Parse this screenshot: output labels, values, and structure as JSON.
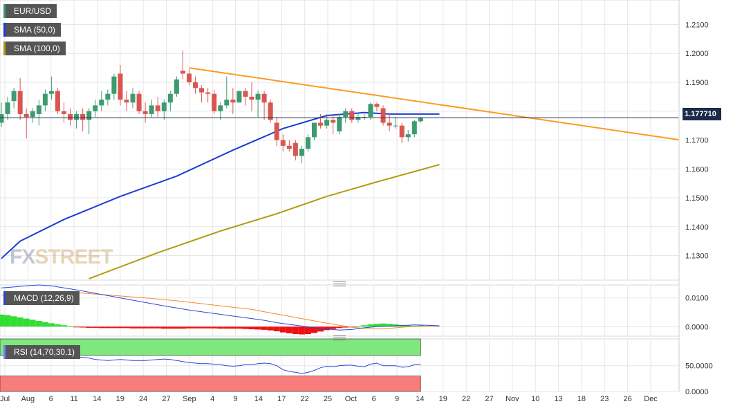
{
  "legend": {
    "pair": "EUR/USD",
    "sma50": "SMA (50,0)",
    "sma100": "SMA (100,0)",
    "macd": "MACD (12,26,9)",
    "rsi": "RSI (14,70,30,1)"
  },
  "watermark": {
    "fx": "FX",
    "street": "STREET"
  },
  "current_price": "1.177710",
  "colors": {
    "up": "#3d9b6f",
    "down": "#d9564f",
    "sma50": "#1c3bd6",
    "sma100": "#b39b12",
    "trendline": "#ff9a1f",
    "macd_line": "#2c45d8",
    "signal_line": "#f08a30",
    "hist_up": "#33dd33",
    "hist_down": "#ee1111",
    "rsi_ob": "#7ee87e",
    "rsi_os": "#f77d7d"
  },
  "chart_data": [
    {
      "type": "candlestick",
      "title": "EUR/USD",
      "y_ticks": [
        "1.2100",
        "1.2000",
        "1.1900",
        "1.1800",
        "1.1700",
        "1.1600",
        "1.1500",
        "1.1400",
        "1.1300"
      ],
      "ylim": [
        1.1215,
        1.2185
      ],
      "x_ticks": [
        "Jul",
        "Aug",
        "6",
        "11",
        "14",
        "19",
        "24",
        "27",
        "Sep",
        "4",
        "9",
        "14",
        "17",
        "22",
        "25",
        "Oct",
        "6",
        "9",
        "14",
        "19",
        "22",
        "27",
        "Nov",
        "10",
        "13",
        "18",
        "23",
        "26",
        "Dec"
      ],
      "ohlc": [
        [
          1.176,
          1.183,
          1.1745,
          1.179
        ],
        [
          1.179,
          1.185,
          1.177,
          1.183
        ],
        [
          1.1835,
          1.188,
          1.181,
          1.187
        ],
        [
          1.187,
          1.1915,
          1.177,
          1.179
        ],
        [
          1.179,
          1.181,
          1.1705,
          1.178
        ],
        [
          1.178,
          1.181,
          1.176,
          1.18
        ],
        [
          1.179,
          1.184,
          1.175,
          1.182
        ],
        [
          1.182,
          1.1875,
          1.18,
          1.186
        ],
        [
          1.186,
          1.192,
          1.184,
          1.187
        ],
        [
          1.187,
          1.188,
          1.179,
          1.18
        ],
        [
          1.18,
          1.183,
          1.176,
          1.179
        ],
        [
          1.179,
          1.181,
          1.175,
          1.177
        ],
        [
          1.177,
          1.18,
          1.174,
          1.179
        ],
        [
          1.179,
          1.181,
          1.173,
          1.177
        ],
        [
          1.177,
          1.181,
          1.172,
          1.18
        ],
        [
          1.18,
          1.184,
          1.178,
          1.182
        ],
        [
          1.182,
          1.187,
          1.18,
          1.184
        ],
        [
          1.184,
          1.1875,
          1.182,
          1.186
        ],
        [
          1.186,
          1.193,
          1.184,
          1.192
        ],
        [
          1.193,
          1.196,
          1.182,
          1.184
        ],
        [
          1.184,
          1.187,
          1.18,
          1.183
        ],
        [
          1.183,
          1.188,
          1.181,
          1.186
        ],
        [
          1.186,
          1.187,
          1.179,
          1.18
        ],
        [
          1.18,
          1.183,
          1.176,
          1.179
        ],
        [
          1.179,
          1.184,
          1.178,
          1.182
        ],
        [
          1.182,
          1.185,
          1.178,
          1.18
        ],
        [
          1.18,
          1.184,
          1.177,
          1.183
        ],
        [
          1.183,
          1.187,
          1.18,
          1.186
        ],
        [
          1.186,
          1.192,
          1.185,
          1.191
        ],
        [
          1.194,
          1.201,
          1.191,
          1.193
        ],
        [
          1.193,
          1.1945,
          1.189,
          1.19
        ],
        [
          1.19,
          1.192,
          1.186,
          1.188
        ],
        [
          1.188,
          1.189,
          1.183,
          1.1865
        ],
        [
          1.1865,
          1.188,
          1.183,
          1.186
        ],
        [
          1.186,
          1.1875,
          1.179,
          1.18
        ],
        [
          1.18,
          1.183,
          1.177,
          1.182
        ],
        [
          1.182,
          1.192,
          1.181,
          1.184
        ],
        [
          1.184,
          1.188,
          1.179,
          1.183
        ],
        [
          1.183,
          1.187,
          1.183,
          1.187
        ],
        [
          1.187,
          1.188,
          1.182,
          1.185
        ],
        [
          1.185,
          1.19,
          1.18,
          1.184
        ],
        [
          1.184,
          1.187,
          1.178,
          1.186
        ],
        [
          1.186,
          1.187,
          1.177,
          1.183
        ],
        [
          1.183,
          1.184,
          1.176,
          1.177
        ],
        [
          1.176,
          1.178,
          1.168,
          1.17
        ],
        [
          1.17,
          1.172,
          1.166,
          1.168
        ],
        [
          1.168,
          1.17,
          1.166,
          1.167
        ],
        [
          1.169,
          1.17,
          1.163,
          1.1645
        ],
        [
          1.1645,
          1.168,
          1.162,
          1.167
        ],
        [
          1.167,
          1.172,
          1.166,
          1.171
        ],
        [
          1.171,
          1.176,
          1.17,
          1.176
        ],
        [
          1.176,
          1.179,
          1.174,
          1.175
        ],
        [
          1.175,
          1.179,
          1.174,
          1.177
        ],
        [
          1.177,
          1.179,
          1.172,
          1.176
        ],
        [
          1.173,
          1.179,
          1.172,
          1.178
        ],
        [
          1.178,
          1.181,
          1.176,
          1.18
        ],
        [
          1.18,
          1.181,
          1.176,
          1.177
        ],
        [
          1.177,
          1.179,
          1.176,
          1.178
        ],
        [
          1.178,
          1.179,
          1.177,
          1.178
        ],
        [
          1.178,
          1.183,
          1.177,
          1.1825
        ],
        [
          1.1825,
          1.183,
          1.18,
          1.1815
        ],
        [
          1.181,
          1.182,
          1.175,
          1.176
        ],
        [
          1.176,
          1.179,
          1.173,
          1.175
        ],
        [
          1.175,
          1.178,
          1.174,
          1.175
        ],
        [
          1.175,
          1.176,
          1.169,
          1.171
        ],
        [
          1.171,
          1.1735,
          1.1695,
          1.172
        ],
        [
          1.172,
          1.177,
          1.171,
          1.1765
        ],
        [
          1.1765,
          1.178,
          1.176,
          1.1777
        ]
      ],
      "series": [
        {
          "name": "SMA (50,0)",
          "type": "line",
          "x": [
            0,
            3,
            10,
            19,
            28,
            37,
            45,
            52,
            58,
            62,
            67,
            70
          ],
          "values": [
            1.129,
            1.135,
            1.1425,
            1.1505,
            1.1575,
            1.1665,
            1.174,
            1.1785,
            1.1795,
            1.179,
            1.179,
            1.179
          ]
        },
        {
          "name": "SMA (100,0)",
          "type": "line",
          "x": [
            14,
            25,
            35,
            44,
            52,
            60,
            70
          ],
          "values": [
            1.122,
            1.131,
            1.1385,
            1.1445,
            1.1505,
            1.1555,
            1.1615
          ]
        },
        {
          "name": "trendline",
          "type": "line",
          "x": [
            30,
            118
          ],
          "values": [
            1.195,
            1.167
          ]
        }
      ],
      "current_price": 1.17771,
      "grid": true
    },
    {
      "type": "macd",
      "title": "MACD (12,26,9)",
      "y_ticks": [
        "0.0100",
        "0.0000"
      ],
      "ylim": [
        -0.0033,
        0.0145
      ],
      "histogram": [
        0.0042,
        0.004,
        0.0036,
        0.0032,
        0.0028,
        0.0024,
        0.002,
        0.0016,
        0.0012,
        0.0008,
        0.0005,
        0.0002,
        -0.0002,
        -0.0003,
        -0.0004,
        -0.0004,
        -0.0005,
        -0.0005,
        -0.0005,
        -0.0005,
        -0.0005,
        -0.0006,
        -0.0006,
        -0.0006,
        -0.0006,
        -0.0006,
        -0.0007,
        -0.0007,
        -0.0007,
        -0.0007,
        -0.0006,
        -0.0006,
        -0.0006,
        -0.0006,
        -0.0006,
        -0.0007,
        -0.0007,
        -0.0007,
        -0.0007,
        -0.0008,
        -0.0009,
        -0.001,
        -0.0011,
        -0.0013,
        -0.0016,
        -0.002,
        -0.0023,
        -0.0026,
        -0.0027,
        -0.0026,
        -0.0022,
        -0.0017,
        -0.0012,
        -0.0008,
        -0.0005,
        -0.0003,
        -0.0001,
        0.0002,
        0.0005,
        0.0008,
        0.001,
        0.0011,
        0.001,
        0.0008,
        0.0006,
        0.0004,
        0.0003,
        0.0004
      ],
      "macd": [
        0.0135,
        0.0138,
        0.0142,
        0.0145,
        0.0142,
        0.0135,
        0.0128,
        0.012,
        0.0112,
        0.0104,
        0.0096,
        0.0088,
        0.008,
        0.0072,
        0.0065,
        0.0058,
        0.0052,
        0.0046,
        0.004,
        0.0034,
        0.0028,
        0.0022,
        0.0014,
        0.0008,
        0.0002,
        -0.0004,
        -0.0008,
        -0.0012,
        -0.001,
        -0.0004,
        0.0,
        0.0002,
        0.0004,
        0.0006,
        0.0005,
        0.0003,
        0.0002,
        0.0002
      ],
      "macd_x": [
        0,
        2,
        4,
        6,
        8,
        10,
        12,
        14,
        16,
        18,
        20,
        22,
        24,
        26,
        28,
        30,
        32,
        34,
        36,
        38,
        40,
        42,
        44,
        46,
        48,
        50,
        52,
        54,
        56,
        58,
        60,
        62,
        64,
        66,
        68,
        70,
        70,
        70
      ],
      "signal": [
        0.011,
        0.0115,
        0.0118,
        0.0118,
        0.0112,
        0.0105,
        0.0098,
        0.009,
        0.008,
        0.007,
        0.006,
        0.0052,
        0.0044,
        0.0036,
        0.0028,
        0.002,
        0.0012,
        0.0005,
        -0.0002,
        -0.0006,
        -0.0008,
        -0.0006,
        -0.0002,
        0.0001,
        0.0002,
        0.0001
      ],
      "signal_x": [
        0,
        4,
        8,
        12,
        16,
        20,
        24,
        28,
        32,
        36,
        40,
        42,
        44,
        46,
        48,
        50,
        52,
        54,
        56,
        58,
        60,
        62,
        64,
        66,
        68,
        70
      ]
    },
    {
      "type": "rsi",
      "title": "RSI (14,70,30,1)",
      "y_ticks": [
        "50.0000",
        "0.0000"
      ],
      "ylim": [
        0,
        102
      ],
      "overbought": 70,
      "oversold": 30,
      "values": [
        70,
        70,
        69,
        67,
        66,
        66,
        66,
        66,
        68,
        70,
        69,
        68,
        67,
        66,
        65,
        62,
        61,
        60,
        61,
        62,
        61,
        60,
        60,
        60,
        61,
        62,
        63,
        62,
        60,
        58,
        56,
        55,
        54,
        54,
        53,
        52,
        50,
        49,
        50,
        52,
        52,
        54,
        55,
        54,
        50,
        42,
        39,
        37,
        35,
        37,
        41,
        46,
        49,
        48,
        50,
        51,
        51,
        49,
        48,
        53,
        55,
        50,
        50,
        50,
        47,
        48,
        52,
        53
      ],
      "grid": true
    }
  ]
}
